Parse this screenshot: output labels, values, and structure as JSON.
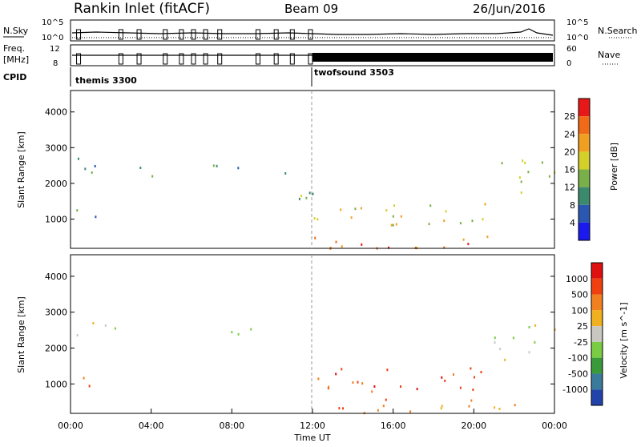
{
  "header": {
    "station": "Rankin Inlet (fitACF)",
    "beam": "Beam 09",
    "date": "26/Jun/2016"
  },
  "panels": {
    "nsky_label": "N.Sky",
    "nsearch_label": "N.Search",
    "nsky_ticks": [
      "10^5",
      "10^0"
    ],
    "nsearch_ticks": [
      "10^5",
      "10^0"
    ],
    "freq_label": "Freq.",
    "freq_unit": "[MHz]",
    "freq_ticks": [
      "12",
      "8"
    ],
    "nave_label": "Nave",
    "nave_ticks": [
      "60",
      "0"
    ],
    "cpid_label": "CPID",
    "cpid_modes": [
      "themis 3300",
      "twofsound 3503"
    ]
  },
  "chart_data": [
    {
      "type": "heatmap",
      "title": "Power",
      "ylabel": "Slant Range [km]",
      "xlabel": "",
      "xlim": [
        "00:00",
        "00:00"
      ],
      "ylim": [
        180,
        4600
      ],
      "yticks": [
        "1000",
        "2000",
        "3000",
        "4000"
      ],
      "colorbar": {
        "label": "Power [dB]",
        "ticks": [
          "4",
          "8",
          "12",
          "16",
          "20",
          "24",
          "28"
        ],
        "colors": [
          "#1a1aee",
          "#2a58b0",
          "#3c8a6e",
          "#7ab04a",
          "#d4d02a",
          "#f0a020",
          "#f06a18",
          "#e81818"
        ]
      },
      "scatter_regions": [
        {
          "t": [
            0.2,
            2.2
          ],
          "r": [
            2150,
            2800
          ],
          "level": 2
        },
        {
          "t": [
            3.1,
            4.5
          ],
          "r": [
            2200,
            2600
          ],
          "level": 3
        },
        {
          "t": [
            0.2,
            2.0
          ],
          "r": [
            900,
            1300
          ],
          "level": 2
        },
        {
          "t": [
            3.8,
            4.2
          ],
          "r": [
            950,
            1200
          ],
          "level": 2
        },
        {
          "t": [
            6.8,
            9.0
          ],
          "r": [
            2350,
            2750
          ],
          "level": 2
        },
        {
          "t": [
            10.5,
            12.0
          ],
          "r": [
            1200,
            2400
          ],
          "level": 3
        },
        {
          "t": [
            12.0,
            20.8
          ],
          "r": [
            800,
            1500
          ],
          "level": 4
        },
        {
          "t": [
            12.0,
            22.4
          ],
          "r": [
            200,
            600
          ],
          "level": 6
        },
        {
          "t": [
            21.0,
            24.0
          ],
          "r": [
            1700,
            2700
          ],
          "level": 3
        }
      ]
    },
    {
      "type": "heatmap",
      "title": "Velocity",
      "ylabel": "Slant Range [km]",
      "xlabel": "Time UT",
      "xlim": [
        "00:00",
        "00:00"
      ],
      "ylim": [
        180,
        4600
      ],
      "xticks": [
        "00:00",
        "04:00",
        "08:00",
        "12:00",
        "16:00",
        "20:00",
        "00:00"
      ],
      "yticks": [
        "1000",
        "2000",
        "3000",
        "4000"
      ],
      "colorbar": {
        "label": "Velocity [m s^-1]",
        "ticks": [
          "1000",
          "500",
          "100",
          "25",
          "-25",
          "-100",
          "-500",
          "-1000"
        ],
        "colors": [
          "#2244aa",
          "#3a7a9a",
          "#3a9a3a",
          "#7acc44",
          "#c8c8c0",
          "#f0b020",
          "#f08020",
          "#f04010",
          "#e01010"
        ]
      },
      "scatter_regions": [
        {
          "t": [
            0.2,
            2.2
          ],
          "r": [
            2150,
            2800
          ],
          "level": 4
        },
        {
          "t": [
            6.8,
            9.0
          ],
          "r": [
            2350,
            2750
          ],
          "level": 4
        },
        {
          "t": [
            0.2,
            2.0
          ],
          "r": [
            900,
            1300
          ],
          "level": 7
        },
        {
          "t": [
            3.8,
            4.2
          ],
          "r": [
            950,
            1200
          ],
          "level": 6
        },
        {
          "t": [
            12.0,
            20.8
          ],
          "r": [
            800,
            1500
          ],
          "level": 7
        },
        {
          "t": [
            12.0,
            22.4
          ],
          "r": [
            200,
            600
          ],
          "level": 6
        },
        {
          "t": [
            21.0,
            24.0
          ],
          "r": [
            1700,
            2700
          ],
          "level": 4
        }
      ]
    }
  ]
}
